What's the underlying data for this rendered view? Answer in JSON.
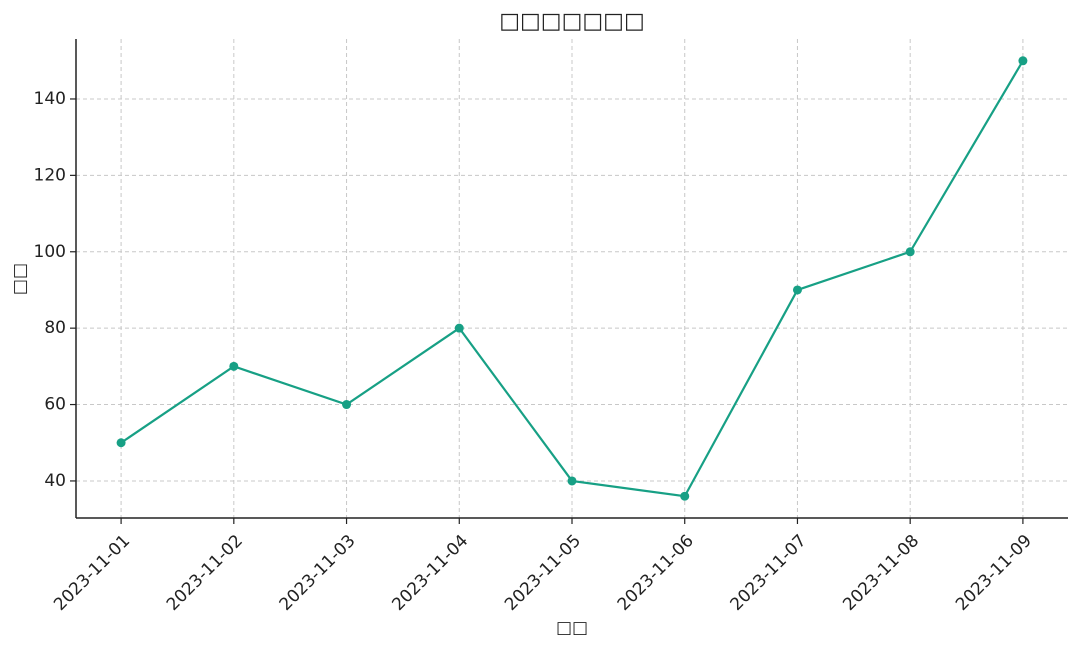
{
  "chart_data": {
    "type": "line",
    "title": "□□□□□□□",
    "x_label": "□□",
    "y_label": "□□",
    "categories": [
      "2023-11-01",
      "2023-11-02",
      "2023-11-03",
      "2023-11-04",
      "2023-11-05",
      "2023-11-06",
      "2023-11-07",
      "2023-11-08",
      "2023-11-09"
    ],
    "values": [
      50,
      70,
      60,
      80,
      40,
      36,
      90,
      100,
      150
    ],
    "color": "#17a085",
    "ylim": [
      30.3,
      155.7
    ],
    "yticks": [
      40,
      60,
      80,
      100,
      120,
      140
    ],
    "grid": true
  }
}
